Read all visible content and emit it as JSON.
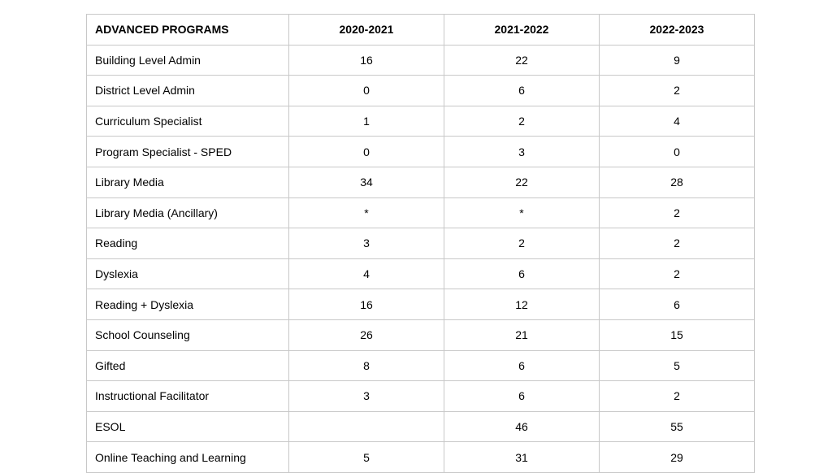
{
  "table": {
    "headers": [
      "ADVANCED PROGRAMS",
      "2020-2021",
      "2021-2022",
      "2022-2023"
    ],
    "rows": [
      [
        "Building Level Admin",
        "16",
        "22",
        "9"
      ],
      [
        "District Level Admin",
        "0",
        "6",
        "2"
      ],
      [
        "Curriculum Specialist",
        "1",
        "2",
        "4"
      ],
      [
        "Program Specialist - SPED",
        "0",
        "3",
        "0"
      ],
      [
        "Library Media",
        "34",
        "22",
        "28"
      ],
      [
        "Library Media (Ancillary)",
        "*",
        "*",
        "2"
      ],
      [
        "Reading",
        "3",
        "2",
        "2"
      ],
      [
        "Dyslexia",
        "4",
        "6",
        "2"
      ],
      [
        "Reading + Dyslexia",
        "16",
        "12",
        "6"
      ],
      [
        "School Counseling",
        "26",
        "21",
        "15"
      ],
      [
        "Gifted",
        "8",
        "6",
        "5"
      ],
      [
        "Instructional Facilitator",
        "3",
        "6",
        "2"
      ],
      [
        "ESOL",
        "",
        "46",
        "55"
      ],
      [
        "Online Teaching and Learning",
        "5",
        "31",
        "29"
      ]
    ]
  }
}
